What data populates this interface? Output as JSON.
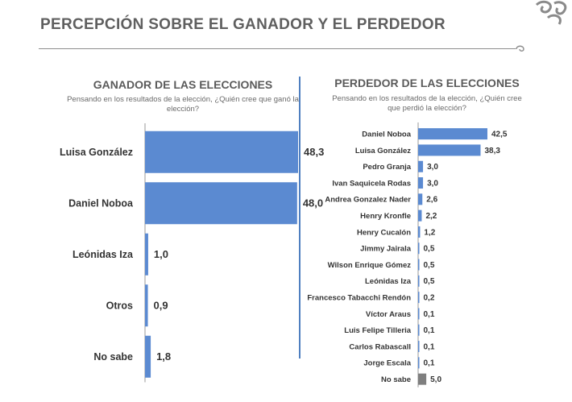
{
  "header": {
    "title": "PERCEPCIÓN SOBRE EL GANADOR Y EL PERDEDOR",
    "logo_icon": "swirl-logo-icon"
  },
  "colors": {
    "bar": "#5b8ad1",
    "bar_other": "#7f7f7f",
    "axis": "#4f7fc0",
    "text": "#333333"
  },
  "chart_data": [
    {
      "type": "bar",
      "orientation": "horizontal",
      "title": "GANADOR DE LAS ELECCIONES",
      "subtitle": "Pensando en los resultados de la elección, ¿Quién cree que ganó la elección?",
      "categories": [
        "Luisa González",
        "Daniel Noboa",
        "Leónidas Iza",
        "Otros",
        "No sabe"
      ],
      "values": [
        48.3,
        48.0,
        1.0,
        0.9,
        1.8
      ],
      "value_labels": [
        "48,3",
        "48,0",
        "1,0",
        "0,9",
        "1,8"
      ],
      "xlim": [
        0,
        50
      ],
      "grid": false,
      "legend": "none"
    },
    {
      "type": "bar",
      "orientation": "horizontal",
      "title": "PERDEDOR DE LAS ELECCIONES",
      "subtitle": "Pensando en los resultados de la elección, ¿Quién cree que perdió la elección?",
      "categories": [
        "Daniel Noboa",
        "Luisa González",
        "Pedro Granja",
        "Ivan Saquicela Rodas",
        "Andrea Gonzalez Nader",
        "Henry Kronfle",
        "Henry Cucalón",
        "Jimmy Jairala",
        "Wilson Enrique Gómez",
        "Leónidas Iza",
        "Francesco Tabacchi Rendón",
        "Víctor Araus",
        "Luis Felipe Tilleria",
        "Carlos Rabascall",
        "Jorge Escala",
        "No sabe"
      ],
      "values": [
        42.5,
        38.3,
        3.0,
        3.0,
        2.6,
        2.2,
        1.2,
        0.5,
        0.5,
        0.5,
        0.2,
        0.1,
        0.1,
        0.1,
        0.1,
        5.0
      ],
      "value_labels": [
        "42,5",
        "38,3",
        "3,0",
        "3,0",
        "2,6",
        "2,2",
        "1,2",
        "0,5",
        "0,5",
        "0,5",
        "0,2",
        "0,1",
        "0,1",
        "0,1",
        "0,1",
        "5,0"
      ],
      "xlim": [
        0,
        50
      ],
      "highlight_last": true,
      "grid": false,
      "legend": "none"
    }
  ]
}
